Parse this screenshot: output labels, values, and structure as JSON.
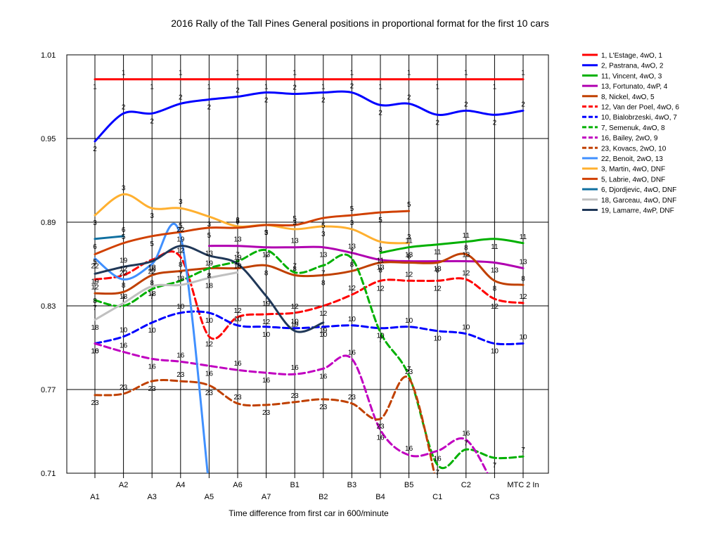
{
  "chart_data": {
    "type": "line",
    "title": "2016 Rally of the Tall Pines  General positions in proportional format for the first 10 cars",
    "xlabel": "Time difference from first car in 600/minute",
    "ylabel": "",
    "ylim": [
      0.71,
      1.01
    ],
    "y_ticks": [
      "0.71",
      "0.77",
      "0.83",
      "0.89",
      "0.95",
      "1.01"
    ],
    "categories": [
      "A1",
      "A2",
      "A3",
      "A4",
      "A5",
      "A6",
      "A7",
      "B1",
      "B2",
      "B3",
      "B4",
      "B5",
      "C1",
      "C2",
      "C3",
      "MTC 2 In"
    ],
    "grid": true,
    "legend_position": "right",
    "series": [
      {
        "name": "1, L'Estage, 4wO, 1",
        "label": "1",
        "color": "#ff0000",
        "dash": false,
        "width": 3,
        "values": [
          0.9925,
          0.9925,
          0.9925,
          0.9925,
          0.9925,
          0.9925,
          0.9925,
          0.9925,
          0.9925,
          0.9925,
          0.9925,
          0.9925,
          0.9925,
          0.9925,
          0.9925,
          0.9925
        ]
      },
      {
        "name": "2, Pastrana, 4wO, 2",
        "label": "2",
        "color": "#0000ff",
        "dash": false,
        "width": 3,
        "values": [
          0.948,
          0.968,
          0.968,
          0.975,
          0.978,
          0.98,
          0.983,
          0.982,
          0.983,
          0.983,
          0.974,
          0.975,
          0.967,
          0.97,
          0.967,
          0.97
        ]
      },
      {
        "name": "11, Vincent, 4wO, 3",
        "label": "11",
        "color": "#00b000",
        "dash": false,
        "width": 3,
        "values": [
          null,
          null,
          null,
          null,
          null,
          null,
          null,
          null,
          null,
          null,
          0.868,
          0.872,
          0.874,
          0.876,
          0.878,
          0.875
        ]
      },
      {
        "name": "13, Fortunato, 4wP, 4",
        "label": "13",
        "color": "#b000b0",
        "dash": false,
        "width": 3,
        "values": [
          null,
          null,
          null,
          null,
          0.873,
          0.873,
          0.872,
          0.872,
          0.872,
          0.868,
          0.863,
          0.862,
          0.862,
          0.862,
          0.861,
          0.857
        ]
      },
      {
        "name": "8, Nickel, 4wO, 5",
        "label": "8",
        "color": "#c04000",
        "dash": false,
        "width": 3,
        "values": [
          0.839,
          0.84,
          0.852,
          0.855,
          0.857,
          0.857,
          0.859,
          0.852,
          0.852,
          0.855,
          0.861,
          0.861,
          0.861,
          0.867,
          0.848,
          0.845
        ]
      },
      {
        "name": "12, Van der Poel, 4wO, 6",
        "label": "12",
        "color": "#ff0000",
        "dash": true,
        "width": 3,
        "values": [
          0.849,
          0.852,
          0.863,
          0.865,
          0.808,
          0.822,
          0.824,
          0.825,
          0.83,
          0.838,
          0.848,
          0.848,
          0.848,
          0.849,
          0.835,
          0.832
        ]
      },
      {
        "name": "10, Bialobrzeski, 4wO, 7",
        "label": "10",
        "color": "#0000ff",
        "dash": true,
        "width": 3,
        "values": [
          0.803,
          0.808,
          0.818,
          0.825,
          0.825,
          0.816,
          0.815,
          0.814,
          0.815,
          0.816,
          0.814,
          0.815,
          0.812,
          0.81,
          0.803,
          0.803
        ]
      },
      {
        "name": "7, Semenuk, 4wO, 8",
        "label": "7",
        "color": "#00b000",
        "dash": true,
        "width": 3,
        "values": [
          0.834,
          0.83,
          0.842,
          0.848,
          0.857,
          0.862,
          0.87,
          0.854,
          0.859,
          0.864,
          0.811,
          0.78,
          0.716,
          0.727,
          0.721,
          0.722
        ]
      },
      {
        "name": "16, Bailey, 2wO, 9",
        "label": "16",
        "color": "#c000c0",
        "dash": true,
        "width": 3,
        "values": [
          0.803,
          0.797,
          0.792,
          0.79,
          0.787,
          0.784,
          0.782,
          0.781,
          0.785,
          0.792,
          0.741,
          0.723,
          0.726,
          0.734,
          0.7,
          null
        ]
      },
      {
        "name": "23, Kovacs, 2wO, 10",
        "label": "23",
        "color": "#c04000",
        "dash": true,
        "width": 3,
        "values": [
          0.766,
          0.767,
          0.776,
          0.776,
          0.773,
          0.76,
          0.759,
          0.761,
          0.763,
          0.76,
          0.749,
          0.778,
          0.7,
          null,
          null,
          null
        ]
      },
      {
        "name": "22, Benoit, 2wO, 13",
        "label": "22",
        "color": "#4090ff",
        "dash": false,
        "width": 3,
        "values": [
          0.864,
          0.849,
          0.86,
          0.88,
          0.7,
          null,
          null,
          null,
          null,
          null,
          null,
          null,
          null,
          null,
          null,
          null
        ]
      },
      {
        "name": "3, Martin, 4wO, DNF",
        "label": "3",
        "color": "#ffb030",
        "dash": false,
        "width": 3,
        "values": [
          0.895,
          0.91,
          0.9,
          0.9,
          0.894,
          0.887,
          0.888,
          0.885,
          0.887,
          0.885,
          0.876,
          0.875,
          null,
          null,
          null,
          null
        ]
      },
      {
        "name": "5, Labrie, 4wO, DNF",
        "label": "5",
        "color": "#d04000",
        "dash": false,
        "width": 3,
        "values": [
          0.867,
          0.875,
          0.88,
          0.883,
          0.886,
          0.886,
          0.888,
          0.888,
          0.893,
          0.895,
          0.897,
          0.898,
          null,
          null,
          null,
          null
        ]
      },
      {
        "name": "6, Djordjevic, 4wO, DNF",
        "label": "6",
        "color": "#1070a0",
        "dash": false,
        "width": 3,
        "values": [
          0.878,
          0.88,
          null,
          null,
          null,
          null,
          null,
          null,
          null,
          null,
          null,
          null,
          null,
          null,
          null,
          null
        ]
      },
      {
        "name": "18, Garceau, 4wO, DNF",
        "label": "18",
        "color": "#c0c0c0",
        "dash": false,
        "width": 3,
        "values": [
          0.82,
          0.832,
          0.844,
          0.845,
          0.85,
          0.854,
          null,
          null,
          null,
          null,
          null,
          null,
          null,
          null,
          null,
          null
        ]
      },
      {
        "name": "19, Lamarre, 4wP, DNF",
        "label": "19",
        "color": "#203858",
        "dash": false,
        "width": 3,
        "values": [
          0.853,
          0.858,
          0.862,
          0.873,
          0.866,
          0.86,
          0.837,
          0.812,
          0.818,
          null,
          null,
          null,
          null,
          null,
          null,
          null
        ]
      }
    ]
  }
}
